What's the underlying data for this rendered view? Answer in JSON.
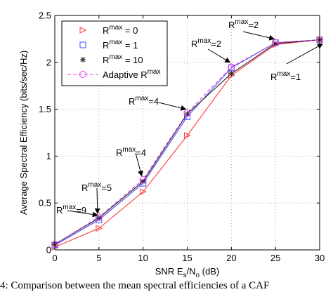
{
  "caption": "4: Comparison between the mean spectral efficiencies of a CAF",
  "chart_data": {
    "type": "line",
    "xlabel_parts": {
      "main": "SNR E",
      "sub1": "s",
      "mid": "/N",
      "sub2": "o",
      "end": " (dB)"
    },
    "ylabel": "Average Spectral Efficiency (bits/sec/Hz)",
    "x_ticks": [
      "0",
      "5",
      "10",
      "15",
      "20",
      "25",
      "30"
    ],
    "y_ticks": [
      "0",
      "0.5",
      "1",
      "1.5",
      "2",
      "2.5"
    ],
    "xlim": [
      0,
      30
    ],
    "ylim": [
      0,
      2.5
    ],
    "grid": true,
    "legend_position": "top-left",
    "x": [
      0,
      5,
      10,
      15,
      20,
      25,
      30
    ],
    "series": [
      {
        "label_sup": "max",
        "label_pre": "R",
        "label_post": " = 0",
        "color": "#ff3b3b",
        "dash": "solid",
        "marker": "triangle-right",
        "values": [
          0.03,
          0.23,
          0.62,
          1.22,
          1.86,
          2.19,
          2.24
        ]
      },
      {
        "label_sup": "max",
        "label_pre": "R",
        "label_post": " = 1",
        "color": "#4b4bff",
        "dash": "solid",
        "marker": "square",
        "values": [
          0.05,
          0.32,
          0.71,
          1.42,
          1.94,
          2.21,
          2.24
        ]
      },
      {
        "label_sup": "max",
        "label_pre": "R",
        "label_post": " = 10",
        "color": "#222222",
        "dash": "solid",
        "marker": "star",
        "values": [
          0.06,
          0.34,
          0.73,
          1.45,
          1.88,
          2.2,
          2.24
        ]
      },
      {
        "label_sup": "max",
        "label_pre": "Adaptive R",
        "label_post": "",
        "color": "#e040e0",
        "dash": "dashed",
        "marker": "circle",
        "values": [
          0.06,
          0.35,
          0.75,
          1.46,
          1.95,
          2.21,
          2.24
        ]
      }
    ],
    "annotations": [
      {
        "pre": "R",
        "sup": "max",
        "post": "=9",
        "arrow_x": 5,
        "arrow_y": 0.34
      },
      {
        "pre": "R",
        "sup": "max",
        "post": "=5",
        "arrow_x": 5,
        "arrow_y": 0.36
      },
      {
        "pre": "R",
        "sup": "max",
        "post": "=4",
        "arrow_x": 10,
        "arrow_y": 0.76
      },
      {
        "pre": "R",
        "sup": "max",
        "post": "=4",
        "arrow_x": 15,
        "arrow_y": 1.47
      },
      {
        "pre": "R",
        "sup": "max",
        "post": "=2",
        "arrow_x": 20,
        "arrow_y": 1.97
      },
      {
        "pre": "R",
        "sup": "max",
        "post": "=2",
        "arrow_x": 25,
        "arrow_y": 2.22
      },
      {
        "pre": "R",
        "sup": "max",
        "post": "=1",
        "arrow_x": 30,
        "arrow_y": 2.24
      }
    ]
  }
}
